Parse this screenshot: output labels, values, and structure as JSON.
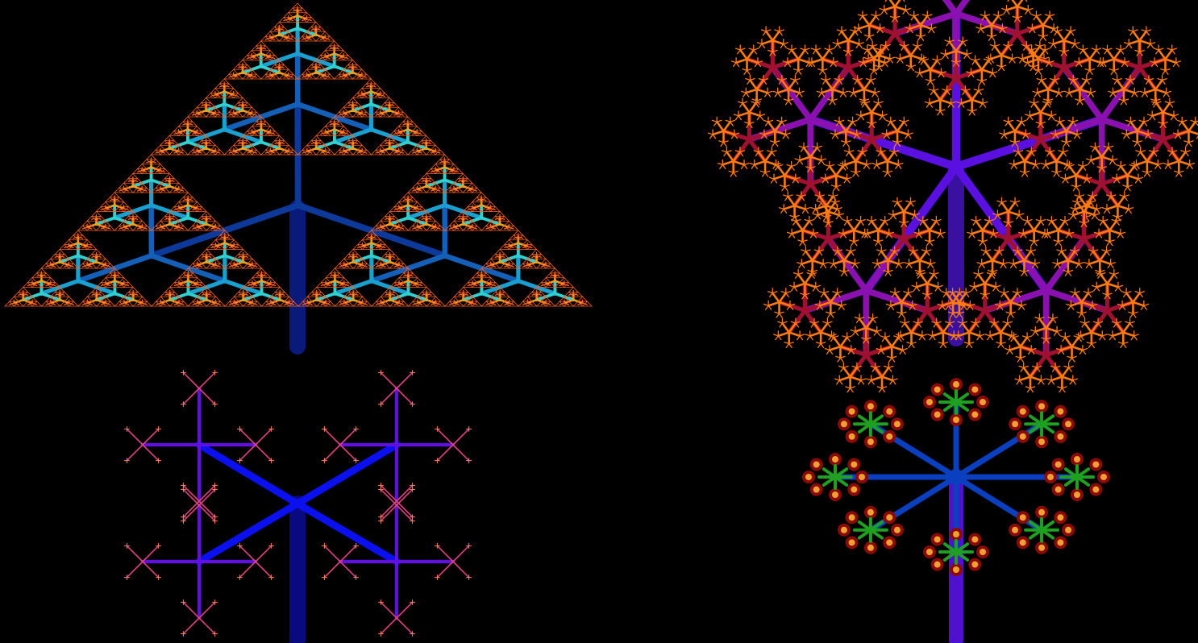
{
  "background": "#000000",
  "panels": [
    {
      "name": "sierpinski-triangle-tree",
      "kind": "triangle-fractal-tree",
      "branches_per_node": 3,
      "depth": 6,
      "trunk_color": "#0a1a7a",
      "branch_colors": [
        "#0a1a7a",
        "#0d3a9a",
        "#1460b8",
        "#1aa0d0",
        "#30d0d0",
        "#f0a020",
        "#ff6020"
      ],
      "triangle_outline_color": "#ff6020"
    },
    {
      "name": "pentagon-fractal-tree",
      "kind": "pentagon-fractal-tree",
      "branches_per_node": 5,
      "depth": 4,
      "branch_colors": [
        "#3a10a0",
        "#5a10e0",
        "#8a10b0",
        "#a01030",
        "#ff7a10"
      ]
    },
    {
      "name": "x-cross-fractal-tree",
      "kind": "x-cross-fractal-tree",
      "branches_per_node": 4,
      "depth": 4,
      "branch_colors": [
        "#0a0a80",
        "#0a10f0",
        "#6010e0",
        "#e04080",
        "#ff8060"
      ]
    },
    {
      "name": "radial-flower-fractal-tree",
      "kind": "radial-flower-fractal-tree",
      "branches_per_node": 8,
      "depth": 3,
      "branch_colors": [
        "#5010d0",
        "#0a40c0",
        "#20a020",
        "#8a0a0a",
        "#f0a030"
      ]
    }
  ]
}
